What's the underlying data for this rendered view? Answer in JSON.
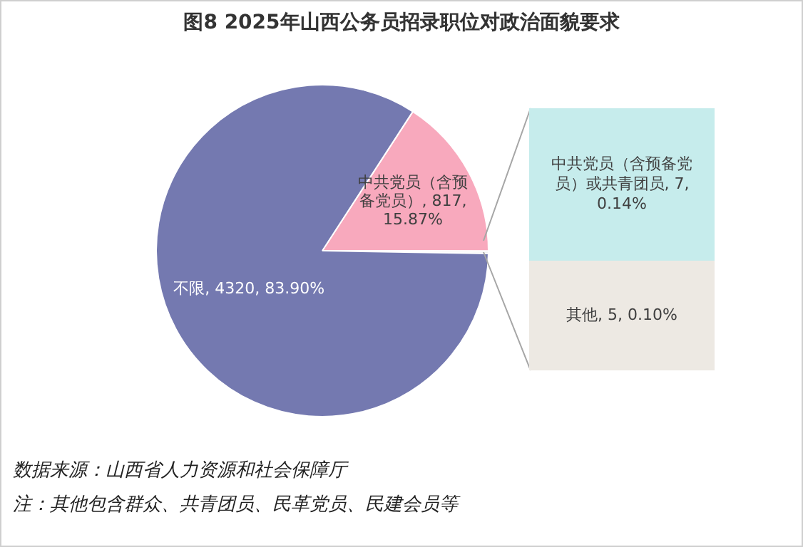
{
  "chart_data": [
    {
      "type": "pie",
      "title": "图8  2025年山西公务员招录职位对政治面貌要求",
      "categories": [
        "中共党员（含预备党员）",
        null,
        "不限"
      ],
      "values": [
        817,
        12,
        4320
      ],
      "colors": [
        "#f8a9bd",
        "#f4f4f4",
        "#7479b0"
      ],
      "value_labels": [
        "817, 15.87%",
        null,
        "4320, 83.90%"
      ],
      "legend": false,
      "annotations": [
        "数据来源：山西省人力资源和社会保障厅",
        "注：其他包含群众、共青团员、民革党员、民建会员等"
      ]
    },
    {
      "type": "bar",
      "stacked": true,
      "categories": [
        null
      ],
      "legend": false,
      "series": [
        {
          "color": "#ede9e3",
          "values": [
            5
          ],
          "value_labels": [
            "其他, 5, 0.10%"
          ]
        },
        {
          "color": "#c6ecec",
          "values": [
            7
          ],
          "value_labels": [
            "中共党员（含预备党员）或共青团员, 7, 0.14%"
          ]
        }
      ]
    }
  ]
}
